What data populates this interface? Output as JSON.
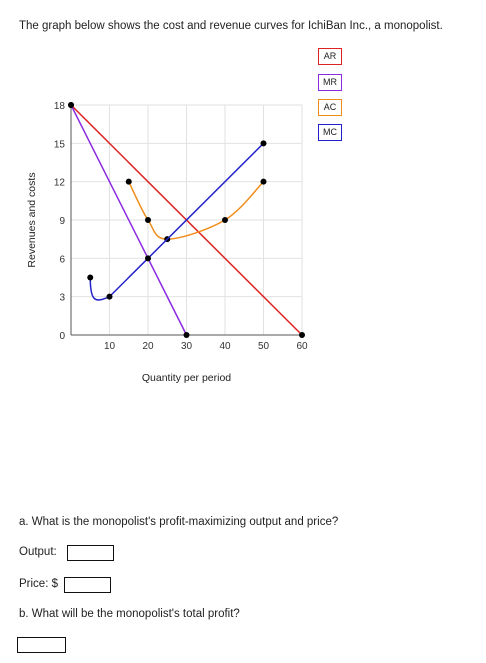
{
  "intro_text": "The graph below shows the cost and revenue curves for IchiBan Inc., a monopolist.",
  "legend": {
    "ar": {
      "label": "AR",
      "color": "#dd2222"
    },
    "mr": {
      "label": "MR",
      "color": "#8a2be2"
    },
    "ac": {
      "label": "AC",
      "color": "#f08c1a"
    },
    "mc": {
      "label": "MC",
      "color": "#2222cc"
    }
  },
  "chart_data": {
    "type": "line",
    "title": "",
    "xlabel": "Quantity per period",
    "ylabel": "Revenues and costs",
    "xlim": [
      0,
      60
    ],
    "ylim": [
      0,
      18
    ],
    "x_ticks": [
      10,
      20,
      30,
      40,
      50,
      60
    ],
    "y_ticks": [
      0,
      3,
      6,
      9,
      12,
      15,
      18
    ],
    "grid": true,
    "legend_position": "top-right",
    "series": [
      {
        "name": "AR",
        "color": "#dd2222",
        "points": [
          [
            0,
            18
          ],
          [
            60,
            0
          ]
        ]
      },
      {
        "name": "MR",
        "color": "#8a2be2",
        "points": [
          [
            0,
            18
          ],
          [
            30,
            0
          ]
        ]
      },
      {
        "name": "AC",
        "color": "#f08c1a",
        "points": [
          [
            15,
            12
          ],
          [
            20,
            9
          ],
          [
            25,
            7.5
          ],
          [
            40,
            9
          ],
          [
            50,
            12
          ]
        ]
      },
      {
        "name": "MC",
        "color": "#2222cc",
        "points": [
          [
            5,
            4.5
          ],
          [
            10,
            3
          ],
          [
            20,
            6
          ],
          [
            50,
            15
          ]
        ]
      }
    ]
  },
  "questions": {
    "a": "a. What is the monopolist's profit-maximizing output and price?",
    "output_label": "Output:",
    "price_label": "Price: $",
    "b": "b. What will be the monopolist's total profit?"
  },
  "answers": {
    "output": "",
    "price": "",
    "profit": ""
  }
}
